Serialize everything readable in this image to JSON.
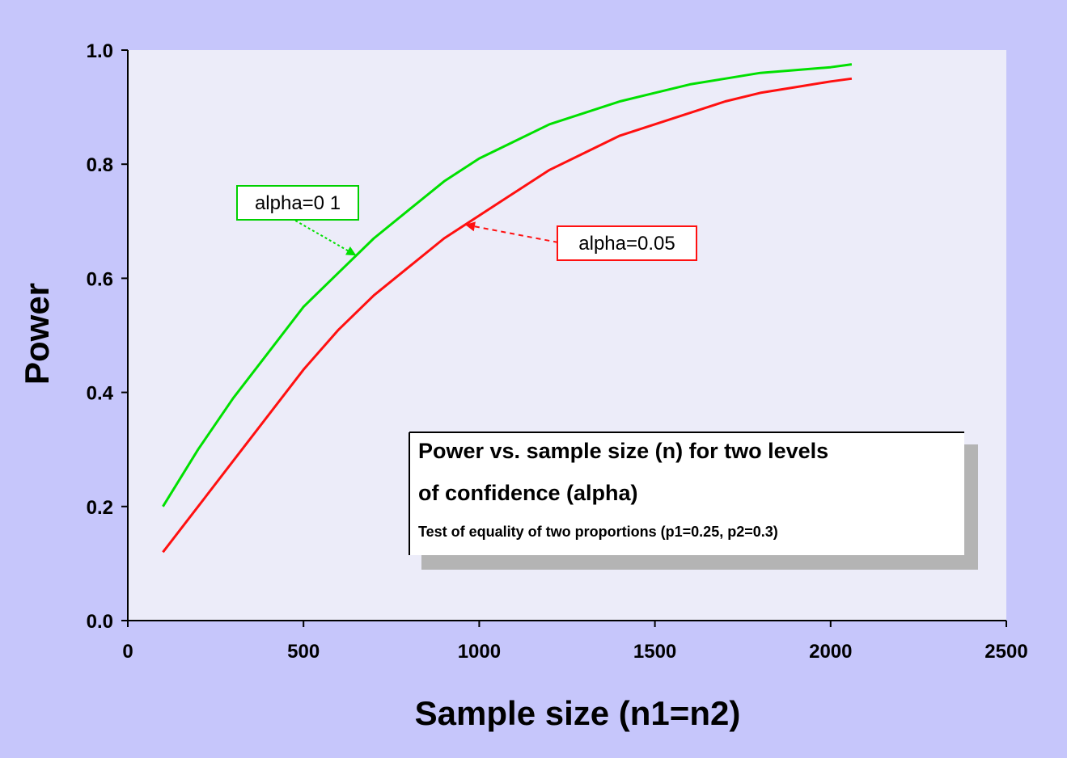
{
  "colors": {
    "outer_background": "#c6c6fb",
    "plot_background": "#ececf9",
    "axis": "#000000",
    "green_series": "#00e000",
    "red_series": "#ff1010",
    "shadow": "#b4b4b4"
  },
  "chart_data": {
    "type": "line",
    "title": "",
    "xlabel": "Sample size (n1=n2)",
    "ylabel": "Power",
    "xlim": [
      0,
      2500
    ],
    "ylim": [
      0.0,
      1.0
    ],
    "x_ticks": [
      "0",
      "500",
      "1000",
      "1500",
      "2000",
      "2500"
    ],
    "y_ticks": [
      "0.0",
      "0.2",
      "0.4",
      "0.6",
      "0.8",
      "1.0"
    ],
    "grid": false,
    "series": [
      {
        "name": "alpha=0 1",
        "color": "#00e000",
        "x": [
          100,
          200,
          300,
          400,
          500,
          600,
          700,
          800,
          900,
          1000,
          1100,
          1200,
          1300,
          1400,
          1500,
          1600,
          1700,
          1800,
          1900,
          2000,
          2060
        ],
        "y": [
          0.2,
          0.3,
          0.39,
          0.47,
          0.55,
          0.61,
          0.67,
          0.72,
          0.77,
          0.81,
          0.84,
          0.87,
          0.89,
          0.91,
          0.925,
          0.94,
          0.95,
          0.96,
          0.965,
          0.97,
          0.975
        ]
      },
      {
        "name": "alpha=0.05",
        "color": "#ff1010",
        "x": [
          100,
          200,
          300,
          400,
          500,
          600,
          700,
          800,
          900,
          1000,
          1100,
          1200,
          1300,
          1400,
          1500,
          1600,
          1700,
          1800,
          1900,
          2000,
          2060
        ],
        "y": [
          0.12,
          0.2,
          0.28,
          0.36,
          0.44,
          0.51,
          0.57,
          0.62,
          0.67,
          0.71,
          0.75,
          0.79,
          0.82,
          0.85,
          0.87,
          0.89,
          0.91,
          0.925,
          0.935,
          0.945,
          0.95
        ]
      }
    ],
    "annotations": [
      {
        "text": "alpha=0 1",
        "series": 0,
        "point_x": 650
      },
      {
        "text": "alpha=0.05",
        "series": 1,
        "point_x": 960
      }
    ],
    "info_box": {
      "heading_line1": "Power vs. sample size (n) for two levels",
      "heading_line2": "of confidence (alpha)",
      "subtext": "Test of equality of two proportions (p1=0.25, p2=0.3)"
    }
  }
}
